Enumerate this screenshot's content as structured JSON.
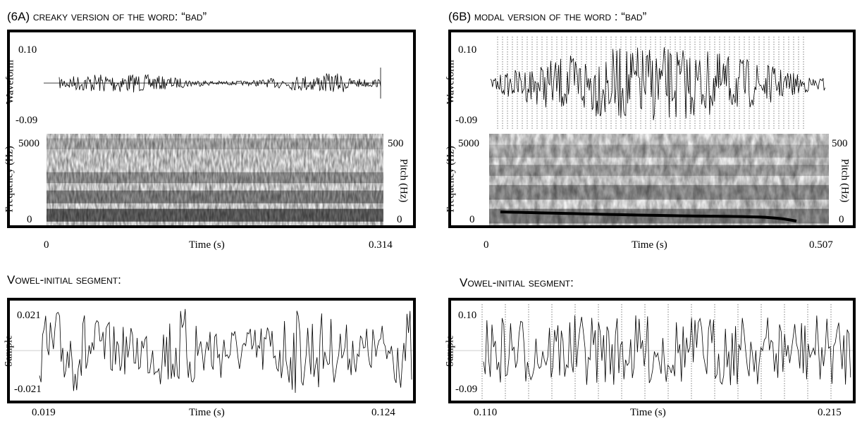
{
  "panels": {
    "a": {
      "title": "(6A) creaky version of the word: “bad”",
      "waveform": {
        "ylabel": "Waveform",
        "ymax": "0.10",
        "ymin": "-0.09"
      },
      "spectrogram": {
        "ylabel": "Frequency (Hz)",
        "ymax": "5000",
        "ymin": "0",
        "pitch_label": "Pitch (Hz)",
        "pitch_max": "500",
        "pitch_min": "0"
      },
      "time": {
        "xlabel": "Time (s)",
        "start": "0",
        "end": "0.314"
      },
      "segment": {
        "title": "Vowel-initial segment:",
        "ylabel": "Sample",
        "ymax": "0.021",
        "ymin": "-0.021",
        "xlabel": "Time (s)",
        "start": "0.019",
        "end": "0.124"
      }
    },
    "b": {
      "title": "(6B) modal version of the word : “bad”",
      "waveform": {
        "ylabel": "Waveform",
        "ymax": "0.10",
        "ymin": "-0.09"
      },
      "spectrogram": {
        "ylabel": "Frequency (Hz)",
        "ymax": "5000",
        "ymin": "0",
        "pitch_label": "Pitch (Hz)",
        "pitch_max": "500",
        "pitch_min": "0"
      },
      "time": {
        "xlabel": "Time (s)",
        "start": "0",
        "end": "0.507"
      },
      "segment": {
        "title": "Vowel-initial segment:",
        "ylabel": "Sample",
        "ymax": "0.10",
        "ymin": "-0.09",
        "xlabel": "Time (s)",
        "start": "0.110",
        "end": "0.215"
      }
    }
  },
  "colors": {
    "ink": "#000000",
    "spectrogram_dark": "#1a1a1a",
    "spectrogram_light": "#f2f2f2",
    "zero_line": "#999999"
  }
}
